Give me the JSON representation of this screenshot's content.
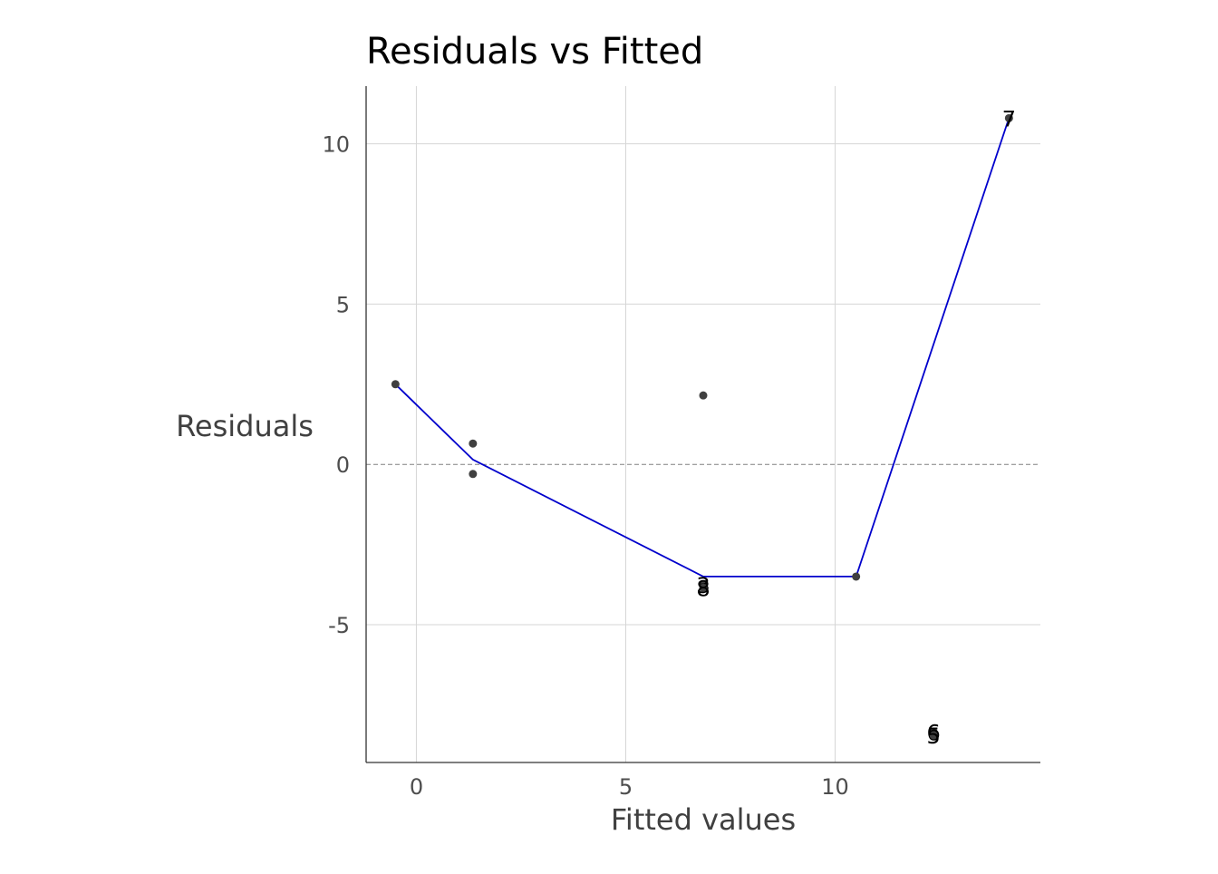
{
  "chart_data": {
    "type": "scatter",
    "title": "Residuals vs Fitted",
    "xlabel": "Fitted values",
    "ylabel": "Residuals",
    "xlim": [
      -1.2,
      14.9
    ],
    "ylim": [
      -9.3,
      11.8
    ],
    "x_ticks": [
      0,
      5,
      10
    ],
    "y_ticks": [
      10,
      5,
      0,
      -5
    ],
    "x_tick_labels": [
      "0",
      "5",
      "10"
    ],
    "y_tick_labels": [
      "10",
      "5",
      "0",
      "-5"
    ],
    "grid": true,
    "reference_line": {
      "y": 0,
      "style": "dashed"
    },
    "points": [
      {
        "x": -0.5,
        "y": 2.5,
        "label": ""
      },
      {
        "x": 1.35,
        "y": 0.65,
        "label": ""
      },
      {
        "x": 1.35,
        "y": -0.3,
        "label": ""
      },
      {
        "x": 6.85,
        "y": 2.15,
        "label": ""
      },
      {
        "x": 6.85,
        "y": -3.75,
        "label": "3"
      },
      {
        "x": 6.85,
        "y": -3.85,
        "label": "8"
      },
      {
        "x": 10.5,
        "y": -3.5,
        "label": ""
      },
      {
        "x": 12.35,
        "y": -8.35,
        "label": "6"
      },
      {
        "x": 12.35,
        "y": -8.45,
        "label": "5"
      },
      {
        "x": 14.15,
        "y": 10.8,
        "label": "7"
      }
    ],
    "smooth_line": {
      "x": [
        -0.5,
        1.35,
        6.85,
        10.5,
        14.15
      ],
      "y": [
        2.5,
        0.15,
        -3.5,
        -3.5,
        10.8
      ],
      "color": "#0000cc"
    },
    "colors": {
      "points": "#404040",
      "grid": "#d6d6d6",
      "axis": "#333333",
      "reference_line": "#808080",
      "smooth": "#0000cc"
    }
  }
}
